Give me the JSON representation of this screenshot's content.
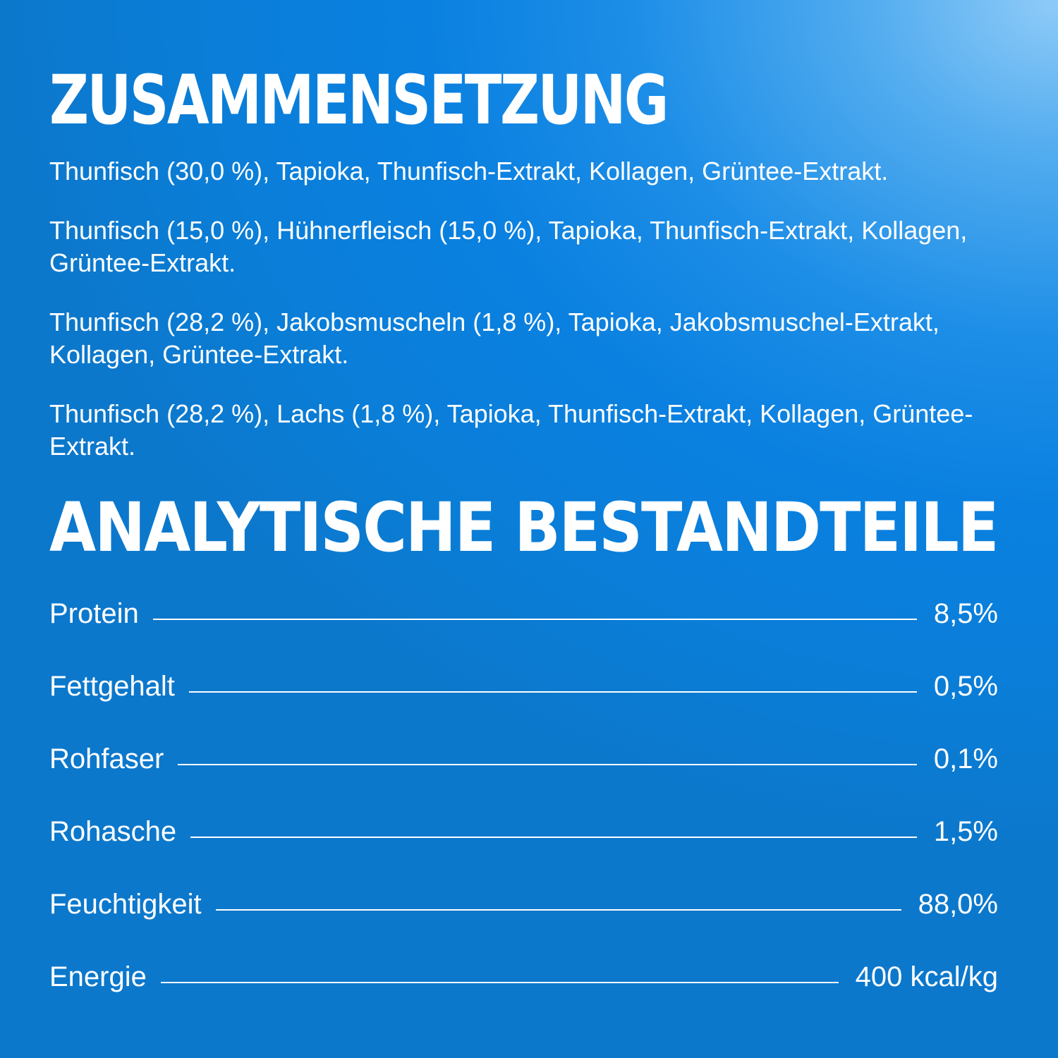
{
  "composition": {
    "title": "ZUSAMMENSETZUNG",
    "items": [
      "Thunfisch (30,0 %), Tapioka, Thunfisch-Extrakt, Kollagen, Grüntee-Extrakt.",
      "Thunfisch (15,0 %), Hühnerfleisch (15,0 %), Tapioka, Thunfisch-Extrakt, Kollagen, Grüntee-Extrakt.",
      "Thunfisch (28,2 %), Jakobsmuscheln (1,8 %), Tapioka, Jakobsmuschel-Extrakt, Kollagen, Grüntee-Extrakt.",
      "Thunfisch (28,2 %), Lachs (1,8 %), Tapioka, Thunfisch-Extrakt, Kollagen, Grüntee-Extrakt."
    ]
  },
  "analysis": {
    "title": "ANALYTISCHE BESTANDTEILE",
    "rows": [
      {
        "label": "Protein",
        "value": "8,5%"
      },
      {
        "label": "Fettgehalt",
        "value": "0,5%"
      },
      {
        "label": "Rohfaser",
        "value": "0,1%"
      },
      {
        "label": "Rohasche",
        "value": "1,5%"
      },
      {
        "label": "Feuchtigkeit",
        "value": "88,0%"
      },
      {
        "label": "Energie",
        "value": "400 kcal/kg"
      }
    ]
  },
  "colors": {
    "background": "#0a80e0",
    "highlight": "#8fcbf8",
    "text": "#ffffff"
  }
}
